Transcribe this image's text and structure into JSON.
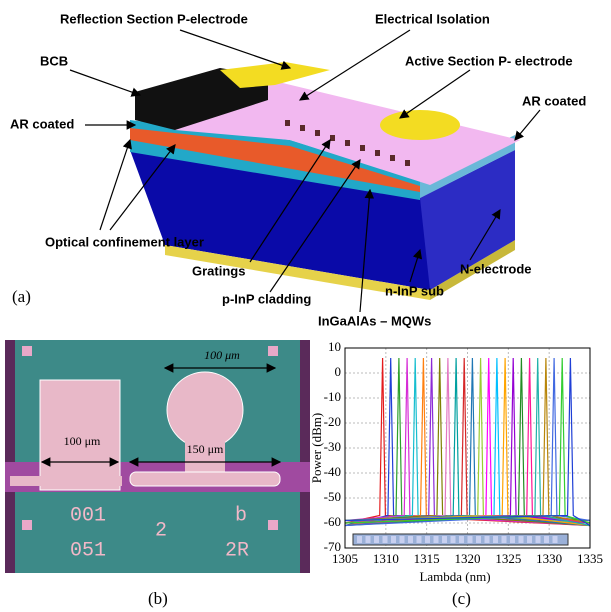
{
  "figure": {
    "a": {
      "caption": "(a)",
      "labels": {
        "reflection": "Reflection Section P-electrode",
        "isolation": "Electrical Isolation",
        "active": "Active Section P- electrode",
        "bcb": "BCB",
        "ar_right": "AR coated",
        "ar_left": "AR coated",
        "ocl": "Optical confinement layer",
        "gratings": "Gratings",
        "n_electrode": "N-electrode",
        "cladding": "p-InP cladding",
        "sub": "n-InP sub",
        "mqw": "InGaAlAs – MQWs"
      }
    },
    "b": {
      "caption": "(b)",
      "scale_top": "100 μm",
      "scale_pad": "100 μm",
      "scale_circle": "150 μm",
      "marks": [
        "001",
        "051",
        "2",
        "b",
        "2R"
      ]
    },
    "c": {
      "caption": "(c)"
    }
  },
  "chart_data": {
    "type": "line",
    "x_label": "Lambda (nm)",
    "y_label": "Power (dBm)",
    "xlim": [
      1305,
      1335
    ],
    "ylim": [
      -70,
      10
    ],
    "xticks": [
      1305,
      1310,
      1315,
      1320,
      1325,
      1330,
      1335
    ],
    "yticks": [
      10,
      0,
      -10,
      -20,
      -30,
      -40,
      -50,
      -60,
      -70
    ],
    "series": [
      {
        "color": "#e41a1c",
        "x": [
          1305,
          1309.25,
          1309.6,
          1309.95,
          1335
        ],
        "values": [
          -60,
          -57,
          6,
          -57,
          -61
        ]
      },
      {
        "color": "#1f3fd6",
        "x": [
          1305,
          1310.25,
          1310.6,
          1310.95,
          1335
        ],
        "values": [
          -61,
          -57,
          6,
          -57,
          -60
        ]
      },
      {
        "color": "#2ca02c",
        "x": [
          1305,
          1311.25,
          1311.6,
          1311.95,
          1335
        ],
        "values": [
          -60,
          -57,
          6,
          -57,
          -59
        ]
      },
      {
        "color": "#d62bd6",
        "x": [
          1305,
          1312.25,
          1312.6,
          1312.95,
          1335
        ],
        "values": [
          -59,
          -57,
          6,
          -57,
          -61
        ]
      },
      {
        "color": "#17becf",
        "x": [
          1305,
          1313.25,
          1313.6,
          1313.95,
          1335
        ],
        "values": [
          -60,
          -57,
          6,
          -57,
          -60
        ]
      },
      {
        "color": "#ff7f0e",
        "x": [
          1305,
          1314.25,
          1314.6,
          1314.95,
          1335
        ],
        "values": [
          -61,
          -57,
          6,
          -57,
          -59
        ]
      },
      {
        "color": "#8c2bd6",
        "x": [
          1305,
          1315.25,
          1315.6,
          1315.95,
          1335
        ],
        "values": [
          -60,
          -57,
          6,
          -57,
          -60
        ]
      },
      {
        "color": "#7f7f00",
        "x": [
          1305,
          1316.25,
          1316.6,
          1316.95,
          1335
        ],
        "values": [
          -59,
          -57,
          6,
          -57,
          -61
        ]
      },
      {
        "color": "#e377c2",
        "x": [
          1305,
          1317.25,
          1317.6,
          1317.95,
          1335
        ],
        "values": [
          -60,
          -57,
          6,
          -57,
          -60
        ]
      },
      {
        "color": "#00a0a0",
        "x": [
          1305,
          1318.25,
          1318.6,
          1318.95,
          1335
        ],
        "values": [
          -61,
          -57,
          6,
          -57,
          -59
        ]
      },
      {
        "color": "#d62728",
        "x": [
          1305,
          1319.25,
          1319.6,
          1319.95,
          1335
        ],
        "values": [
          -60,
          -57,
          6,
          -57,
          -60
        ]
      },
      {
        "color": "#1f77b4",
        "x": [
          1305,
          1320.25,
          1320.6,
          1320.95,
          1335
        ],
        "values": [
          -59,
          -57,
          6,
          -57,
          -61
        ]
      },
      {
        "color": "#9acd32",
        "x": [
          1305,
          1321.25,
          1321.6,
          1321.95,
          1335
        ],
        "values": [
          -60,
          -57,
          6,
          -57,
          -60
        ]
      },
      {
        "color": "#ff00ff",
        "x": [
          1305,
          1322.25,
          1322.6,
          1322.95,
          1335
        ],
        "values": [
          -61,
          -57,
          6,
          -57,
          -59
        ]
      },
      {
        "color": "#00bfff",
        "x": [
          1305,
          1323.25,
          1323.6,
          1323.95,
          1335
        ],
        "values": [
          -60,
          -57,
          6,
          -57,
          -60
        ]
      },
      {
        "color": "#ffa500",
        "x": [
          1305,
          1324.25,
          1324.6,
          1324.95,
          1335
        ],
        "values": [
          -59,
          -57,
          6,
          -57,
          -61
        ]
      },
      {
        "color": "#9400d3",
        "x": [
          1305,
          1325.25,
          1325.6,
          1325.95,
          1335
        ],
        "values": [
          -60,
          -57,
          6,
          -57,
          -60
        ]
      },
      {
        "color": "#228b22",
        "x": [
          1305,
          1326.25,
          1326.6,
          1326.95,
          1335
        ],
        "values": [
          -61,
          -57,
          6,
          -57,
          -59
        ]
      },
      {
        "color": "#ff1493",
        "x": [
          1305,
          1327.25,
          1327.6,
          1327.95,
          1335
        ],
        "values": [
          -60,
          -57,
          6,
          -57,
          -60
        ]
      },
      {
        "color": "#20b2aa",
        "x": [
          1305,
          1328.25,
          1328.6,
          1328.95,
          1335
        ],
        "values": [
          -59,
          -57,
          6,
          -57,
          -61
        ]
      },
      {
        "color": "#b8860b",
        "x": [
          1305,
          1329.25,
          1329.6,
          1329.95,
          1335
        ],
        "values": [
          -60,
          -57,
          6,
          -57,
          -60
        ]
      },
      {
        "color": "#4169e1",
        "x": [
          1305,
          1330.25,
          1330.6,
          1330.95,
          1335
        ],
        "values": [
          -61,
          -57,
          6,
          -57,
          -59
        ]
      },
      {
        "color": "#32cd32",
        "x": [
          1305,
          1331.25,
          1331.6,
          1331.95,
          1335
        ],
        "values": [
          -60,
          -57,
          6,
          -57,
          -60
        ]
      },
      {
        "color": "#1f3fd6",
        "x": [
          1305,
          1332.25,
          1332.6,
          1332.95,
          1335
        ],
        "values": [
          -59,
          -57,
          6,
          -57,
          -61
        ]
      }
    ]
  }
}
